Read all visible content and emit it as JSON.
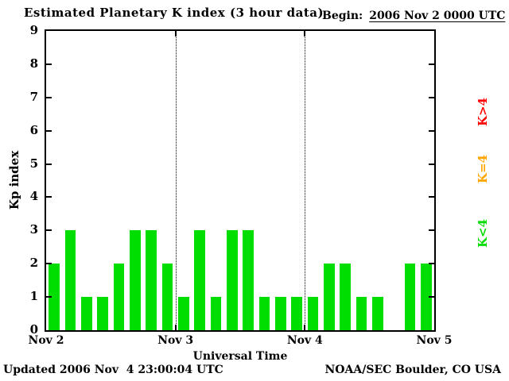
{
  "title": "Estimated Planetary K index (3 hour data)",
  "begin": {
    "label": "Begin:",
    "value": "2006 Nov 2 0000 UTC"
  },
  "y_axis_title": "Kp index",
  "x_axis_title": "Universal Time",
  "footer": {
    "updated": "Updated 2006 Nov  4 23:00:04 UTC",
    "credit": "NOAA/SEC Boulder, CO USA"
  },
  "legend": [
    {
      "label": "K>4",
      "color": "#ff0000"
    },
    {
      "label": "K=4",
      "color": "#ffa500"
    },
    {
      "label": "K<4",
      "color": "#00dd00"
    }
  ],
  "chart_data": {
    "type": "bar",
    "title": "Estimated Planetary K index (3 hour data)",
    "xlabel": "Universal Time",
    "ylabel": "Kp index",
    "ylim": [
      0,
      9
    ],
    "y_ticks": [
      0,
      1,
      2,
      3,
      4,
      5,
      6,
      7,
      8,
      9
    ],
    "x_ticks": [
      "Nov 2",
      "Nov 3",
      "Nov 4",
      "Nov 5"
    ],
    "hours_per_bar": 3,
    "bars_per_day": 8,
    "bar_color": "#00dd00",
    "grid": "dotted vertical lines at day boundaries",
    "legend_position": "right, rotated",
    "values": [
      2,
      3,
      1,
      1,
      2,
      3,
      3,
      2,
      1,
      3,
      1,
      3,
      3,
      1,
      1,
      1,
      1,
      2,
      2,
      1,
      1,
      null,
      2,
      2
    ],
    "values_by_day": {
      "Nov 2": [
        2,
        3,
        1,
        1,
        2,
        3,
        3,
        2
      ],
      "Nov 3": [
        1,
        3,
        1,
        3,
        3,
        1,
        1,
        1
      ],
      "Nov 4": [
        1,
        2,
        2,
        1,
        1,
        null,
        2,
        2
      ]
    }
  }
}
